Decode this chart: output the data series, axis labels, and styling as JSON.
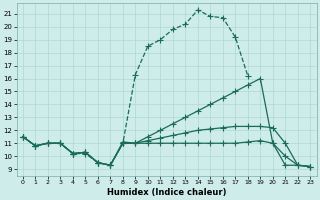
{
  "xlabel": "Humidex (Indice chaleur)",
  "xlim": [
    -0.5,
    23.5
  ],
  "ylim": [
    8.5,
    21.8
  ],
  "yticks": [
    9,
    10,
    11,
    12,
    13,
    14,
    15,
    16,
    17,
    18,
    19,
    20,
    21
  ],
  "xticks": [
    0,
    1,
    2,
    3,
    4,
    5,
    6,
    7,
    8,
    9,
    10,
    11,
    12,
    13,
    14,
    15,
    16,
    17,
    18,
    19,
    20,
    21,
    22,
    23
  ],
  "bg_color": "#ceecea",
  "grid_color": "#aed8d4",
  "line_color": "#1a6b5a",
  "line_width": 0.9,
  "marker": "+",
  "marker_size": 4.5,
  "series": [
    {
      "x": [
        0,
        1,
        2,
        3,
        4,
        5,
        6,
        7,
        8,
        9,
        10,
        11,
        12,
        13,
        14,
        15,
        16,
        17,
        18
      ],
      "y": [
        11.5,
        10.8,
        11.0,
        11.0,
        10.2,
        10.2,
        9.5,
        9.3,
        11.0,
        16.3,
        18.5,
        19.0,
        19.8,
        20.2,
        21.3,
        20.8,
        20.7,
        19.2,
        16.2
      ],
      "dashed": true
    },
    {
      "x": [
        0,
        1,
        2,
        3,
        4,
        5,
        6,
        7,
        8,
        9,
        10,
        11,
        12,
        13,
        14,
        15,
        16,
        17,
        18,
        19,
        20,
        21,
        22,
        23
      ],
      "y": [
        11.5,
        10.8,
        11.0,
        11.0,
        10.2,
        10.3,
        9.5,
        9.3,
        11.1,
        11.0,
        11.5,
        12.0,
        12.5,
        13.0,
        13.5,
        14.0,
        14.5,
        15.0,
        15.5,
        16.0,
        11.0,
        9.3,
        9.3,
        9.2
      ],
      "dashed": false
    },
    {
      "x": [
        0,
        1,
        2,
        3,
        4,
        5,
        6,
        7,
        8,
        9,
        10,
        11,
        12,
        13,
        14,
        15,
        16,
        17,
        18,
        19,
        20,
        21,
        22,
        23
      ],
      "y": [
        11.5,
        10.8,
        11.0,
        11.0,
        10.2,
        10.3,
        9.5,
        9.3,
        11.0,
        11.0,
        11.2,
        11.4,
        11.6,
        11.8,
        12.0,
        12.1,
        12.2,
        12.3,
        12.3,
        12.3,
        12.2,
        11.0,
        9.3,
        9.2
      ],
      "dashed": false
    },
    {
      "x": [
        0,
        1,
        2,
        3,
        4,
        5,
        6,
        7,
        8,
        9,
        10,
        11,
        12,
        13,
        14,
        15,
        16,
        17,
        18,
        19,
        20,
        21,
        22,
        23
      ],
      "y": [
        11.5,
        10.8,
        11.0,
        11.0,
        10.2,
        10.3,
        9.5,
        9.3,
        11.0,
        11.0,
        11.0,
        11.0,
        11.0,
        11.0,
        11.0,
        11.0,
        11.0,
        11.0,
        11.1,
        11.2,
        11.0,
        10.0,
        9.3,
        9.2
      ],
      "dashed": false
    }
  ]
}
